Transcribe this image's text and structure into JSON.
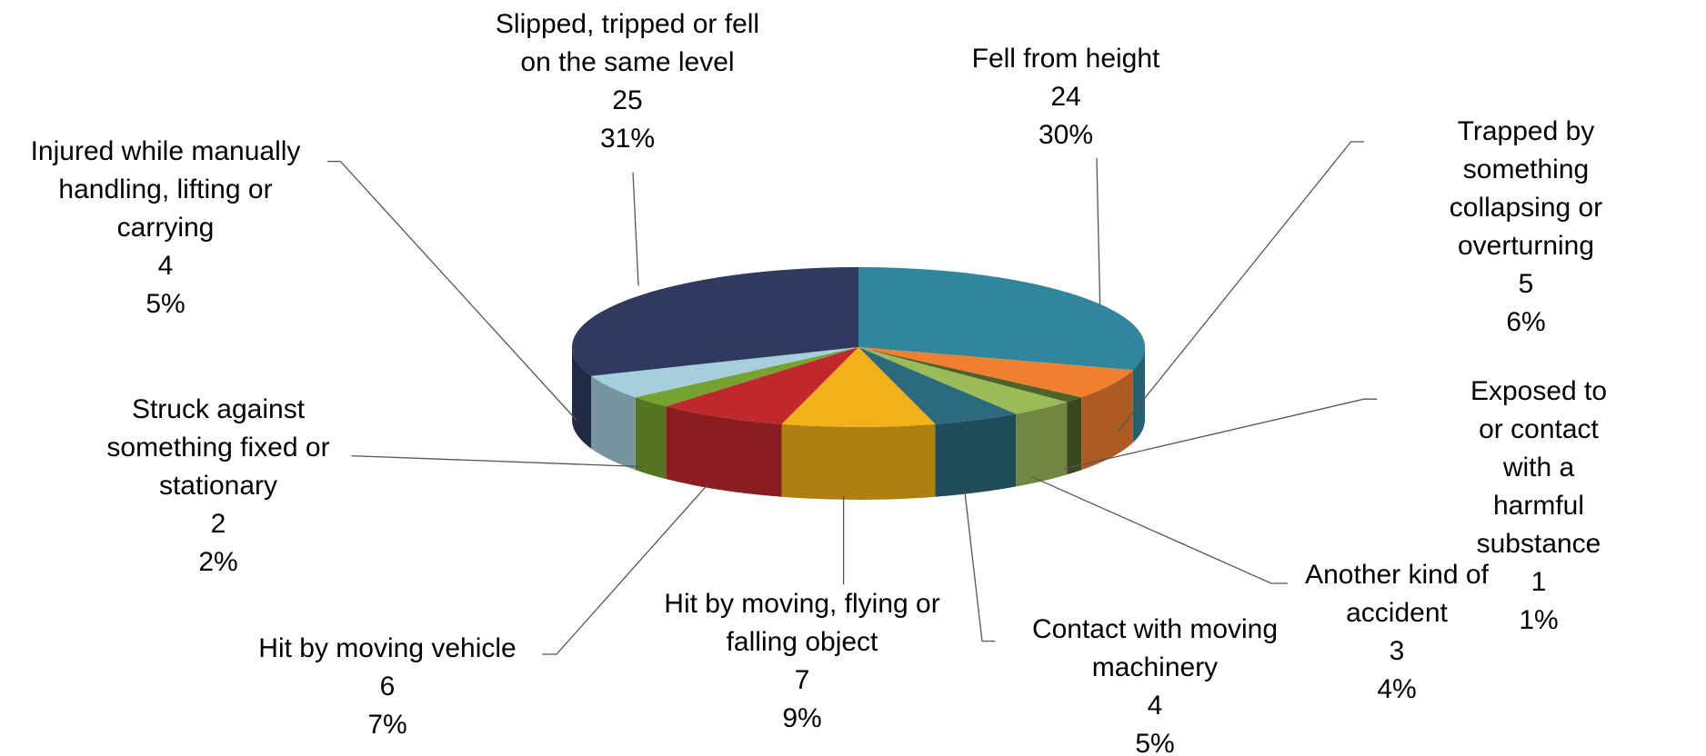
{
  "chart_data": {
    "type": "pie3d",
    "categories": [
      "Fell from height",
      "Trapped by something\ncollapsing or\noverturning",
      "Exposed to or contact\nwith a harmful\nsubstance",
      "Another kind of\naccident",
      "Contact with moving\nmachinery",
      "Hit by moving, flying or\nfalling object",
      "Hit by moving vehicle",
      "Struck against\nsomething fixed or\nstationary",
      "Injured while manually\nhandling, lifting or\ncarrying",
      "Slipped, tripped or fell\non the same level"
    ],
    "values": [
      24,
      5,
      1,
      3,
      4,
      7,
      6,
      2,
      4,
      25
    ],
    "percent_labels": [
      "30%",
      "6%",
      "1%",
      "4%",
      "5%",
      "9%",
      "7%",
      "2%",
      "5%",
      "31%"
    ],
    "colors": [
      "#31859c",
      "#f07f30",
      "#4f6228",
      "#9bbb59",
      "#2b6a7c",
      "#f2b118",
      "#c0282d",
      "#77a22f",
      "#a5cfdc",
      "#2f3a5e"
    ]
  }
}
